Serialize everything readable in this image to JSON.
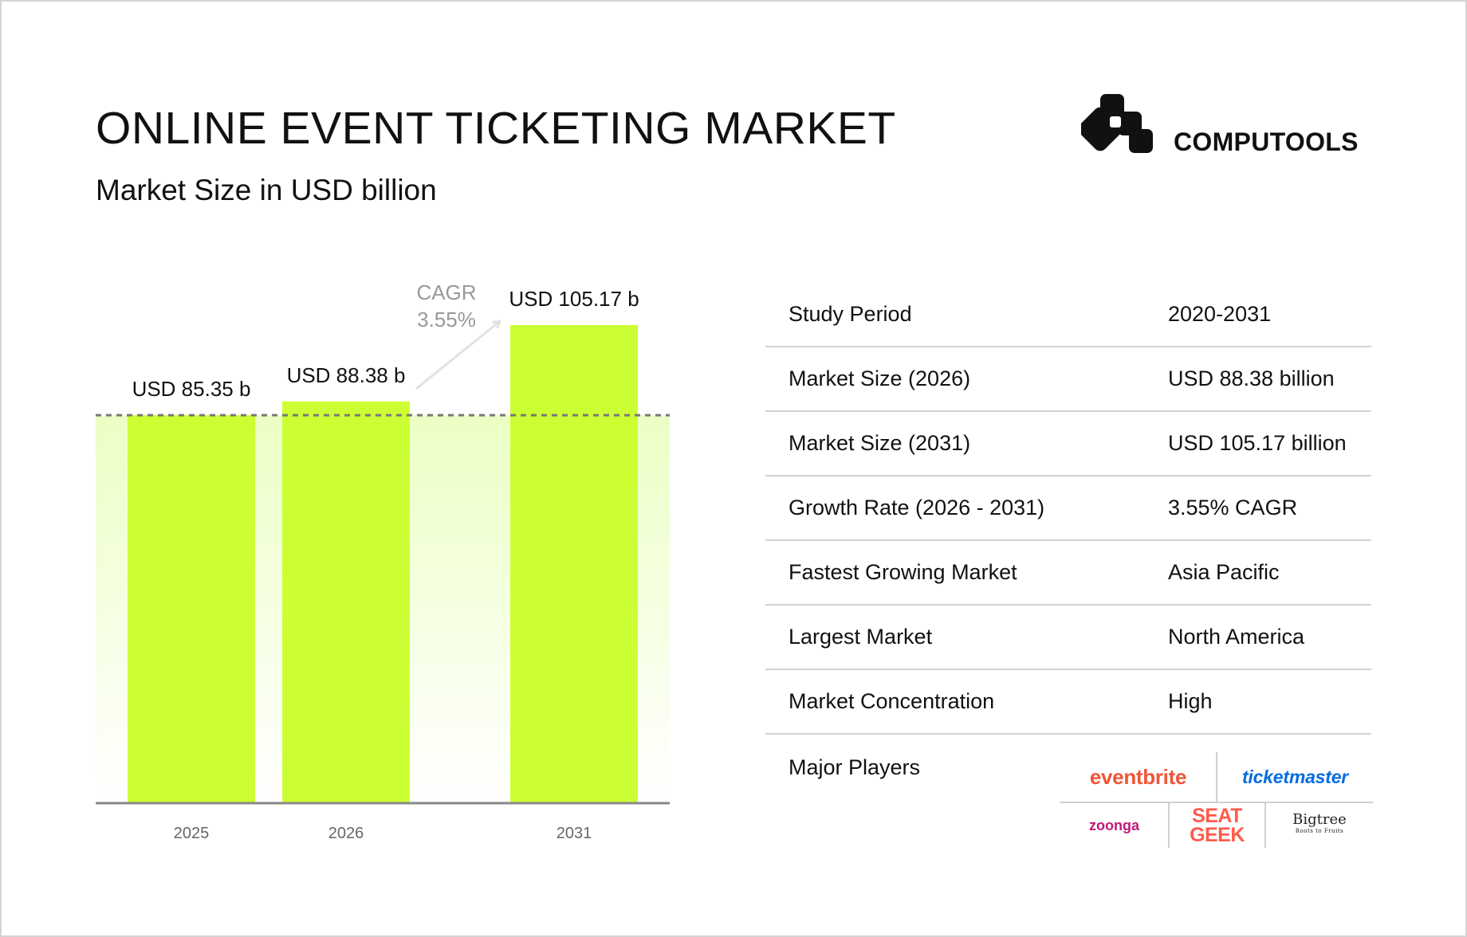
{
  "header": {
    "title": "ONLINE EVENT TICKETING MARKET",
    "subtitle": "Market Size in USD billion",
    "brand": "COMPUTOOLS",
    "brand_icon": "computools-logo-icon"
  },
  "colors": {
    "bar": "#ccff33",
    "gradient": "#ebffc4",
    "baseline_dash": "#777777",
    "axis": "#888888",
    "cagr_text": "#999999",
    "arrow": "#e2e2e2",
    "divider": "#d2d2d2"
  },
  "chart_data": {
    "type": "bar",
    "categories": [
      "2025",
      "2026",
      "2031"
    ],
    "values": [
      85.35,
      88.38,
      105.17
    ],
    "data_labels": [
      "USD 85.35 b",
      "USD 88.38 b",
      "USD 105.17 b"
    ],
    "title": "Market Size in USD billion",
    "xlabel": "",
    "ylabel": "",
    "ylim": [
      0,
      105.17
    ],
    "grid": false,
    "legend": "none",
    "annotations": {
      "cagr_label": "CAGR",
      "cagr_value": "3.55%",
      "reference_line": "dashed line at 2025 value"
    }
  },
  "table": {
    "rows": [
      {
        "label": "Study Period",
        "value": "2020-2031"
      },
      {
        "label": "Market Size (2026)",
        "value": "USD 88.38 billion"
      },
      {
        "label": "Market Size (2031)",
        "value": "USD 105.17 billion"
      },
      {
        "label": "Growth Rate (2026 - 2031)",
        "value": "3.55% CAGR"
      },
      {
        "label": "Fastest Growing Market",
        "value": "Asia Pacific"
      },
      {
        "label": "Largest Market",
        "value": "North America"
      },
      {
        "label": "Market Concentration",
        "value": "High"
      }
    ],
    "players_label": "Major Players",
    "players": {
      "eventbrite": "eventbrite",
      "ticketmaster": "ticketmaster",
      "zoonga": "zoonga",
      "seatgeek_line1": "SEAT",
      "seatgeek_line2": "GEEK",
      "bigtree": "Bigtree",
      "bigtree_tagline": "Roots to Fruits"
    }
  }
}
